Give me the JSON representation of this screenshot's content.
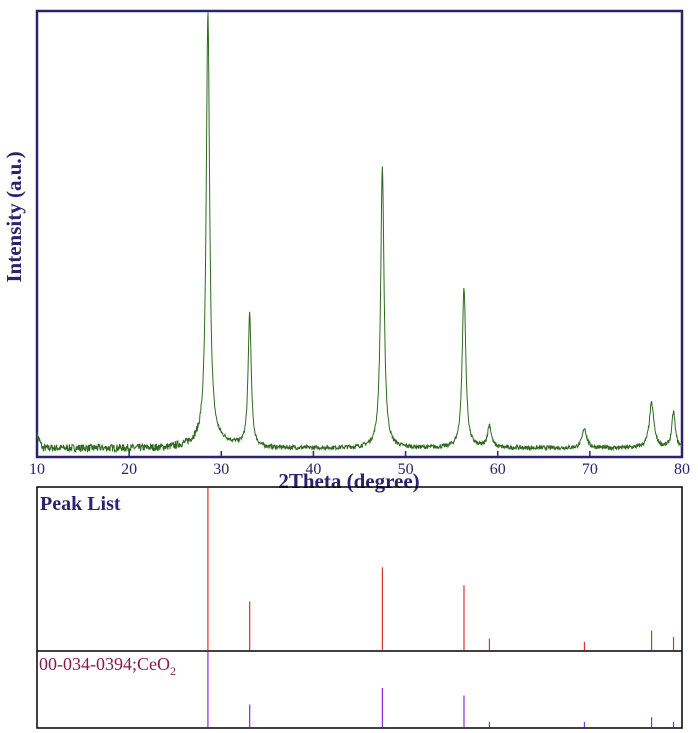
{
  "chart_data": [
    {
      "type": "line",
      "xlabel": "2Theta (degree)",
      "ylabel": "Intensity (a.u.)",
      "xlim": [
        10,
        80
      ],
      "xticks": [
        10,
        20,
        30,
        40,
        50,
        60,
        70,
        80
      ],
      "ylim": [
        0,
        1.0
      ],
      "grid": false,
      "colors": {
        "axis": "#2b2270",
        "line": "#2f6a1f"
      },
      "series": [
        {
          "baseline": 0.02,
          "noise": 0.012,
          "peaks": [
            {
              "x": 28.55,
              "height": 0.96,
              "width": 0.22
            },
            {
              "x": 33.08,
              "height": 0.3,
              "width": 0.2
            },
            {
              "x": 47.48,
              "height": 0.63,
              "width": 0.22
            },
            {
              "x": 56.34,
              "height": 0.36,
              "width": 0.23
            },
            {
              "x": 59.1,
              "height": 0.05,
              "width": 0.25
            },
            {
              "x": 69.41,
              "height": 0.045,
              "width": 0.28
            },
            {
              "x": 76.7,
              "height": 0.1,
              "width": 0.3
            },
            {
              "x": 79.08,
              "height": 0.08,
              "width": 0.22
            }
          ]
        }
      ]
    },
    {
      "type": "bar",
      "title": "Peak List",
      "xlim": [
        10,
        80
      ],
      "colors": {
        "bar": "#e0302a",
        "frame": "#000000"
      },
      "x": [
        28.55,
        33.08,
        47.48,
        56.34,
        59.1,
        69.41,
        76.7,
        79.08
      ],
      "values": [
        100,
        30,
        51,
        40,
        7,
        5,
        12,
        8
      ]
    },
    {
      "type": "bar",
      "title_main": "00-034-0394;CeO",
      "title_sub": "2",
      "xlim": [
        10,
        80
      ],
      "colors": {
        "bar": "#8a2be2",
        "frame": "#000000"
      },
      "x": [
        28.55,
        33.08,
        47.48,
        56.34,
        59.1,
        69.41,
        76.7,
        79.08
      ],
      "values": [
        100,
        30,
        52,
        42,
        7,
        7,
        13,
        7
      ]
    }
  ]
}
